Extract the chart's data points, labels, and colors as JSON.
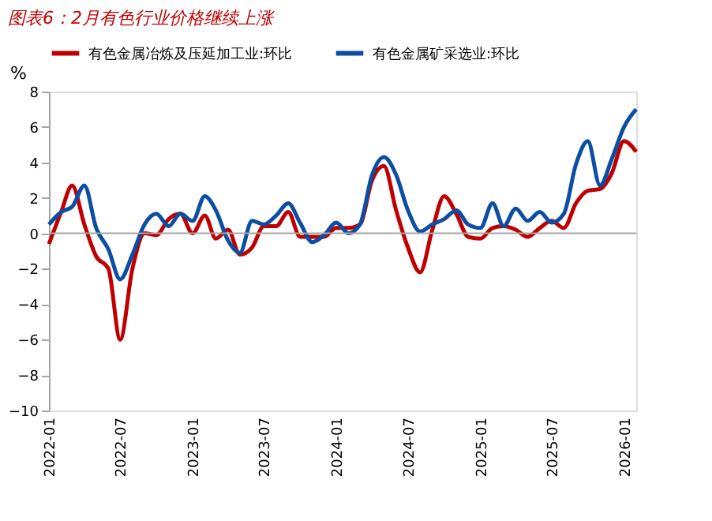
{
  "chart_data": {
    "type": "line",
    "title": "图表6：2月有色行业价格继续上涨",
    "ylabel": "%",
    "x": [
      "2022-01",
      "2022-02",
      "2022-03",
      "2022-04",
      "2022-05",
      "2022-06",
      "2022-07",
      "2022-08",
      "2022-09",
      "2022-10",
      "2022-11",
      "2022-12",
      "2023-01",
      "2023-02",
      "2023-03",
      "2023-04",
      "2023-05",
      "2023-06",
      "2023-07",
      "2023-08",
      "2023-09",
      "2023-10",
      "2023-11",
      "2023-12",
      "2024-01",
      "2024-02",
      "2024-03",
      "2024-04",
      "2024-05",
      "2024-06",
      "2024-07",
      "2024-08",
      "2024-09",
      "2024-10",
      "2024-11",
      "2024-12",
      "2025-01",
      "2025-02",
      "2025-03",
      "2025-04",
      "2025-05",
      "2025-06",
      "2025-07",
      "2025-08",
      "2025-09",
      "2025-10",
      "2025-11",
      "2025-12",
      "2026-01",
      "2026-02"
    ],
    "series": [
      {
        "name": "有色金属冶炼及压延加工业:环比",
        "color": "#c00000",
        "values": [
          -0.6,
          1.2,
          2.7,
          0.5,
          -1.3,
          -2,
          -6,
          -2,
          0,
          -0.1,
          0.8,
          1.1,
          0,
          1,
          -0.3,
          0.2,
          -1.2,
          -0.8,
          0.4,
          0.4,
          1.2,
          -0.2,
          -0.2,
          -0.2,
          0.3,
          0.3,
          0.5,
          3,
          3.8,
          1.3,
          -0.8,
          -2.2,
          0.2,
          2.1,
          1.1,
          -0.2,
          -0.3,
          0.3,
          0.4,
          0.2,
          -0.2,
          0.3,
          0.7,
          0.3,
          1.7,
          2.4,
          2.5,
          3.4,
          5.2,
          4.6
        ]
      },
      {
        "name": "有色金属矿采选业:环比",
        "color": "#0b4ea2",
        "values": [
          0.5,
          1.2,
          1.5,
          2.7,
          0.3,
          -0.9,
          -2.6,
          -1.2,
          0.5,
          1.1,
          0.4,
          1.1,
          0.7,
          2.1,
          1.3,
          -0.4,
          -1.1,
          0.7,
          0.5,
          1,
          1.7,
          0.6,
          -0.5,
          -0.1,
          0.6,
          0,
          0.5,
          3.3,
          4.3,
          3.3,
          1.3,
          0.1,
          0.5,
          0.8,
          1.3,
          0.5,
          0.3,
          1.7,
          0.4,
          1.4,
          0.7,
          1.2,
          0.6,
          1.1,
          3.9,
          5.2,
          2.7,
          4.2,
          6,
          7
        ]
      }
    ],
    "ylim": [
      -10,
      8
    ],
    "yticks": [
      -10,
      -8,
      -6,
      -4,
      -2,
      0,
      2,
      4,
      6,
      8
    ],
    "xlim": [
      "2022-01",
      "2026-02"
    ],
    "xticks": [
      "2022-01",
      "2022-07",
      "2023-01",
      "2023-07",
      "2024-01",
      "2024-07",
      "2025-01",
      "2025-07",
      "2026-01"
    ],
    "ref_lines": [
      {
        "axis": "y",
        "value": 0,
        "color": "#a6a6a6"
      }
    ],
    "grid": false,
    "legend": "top",
    "line_style": "solid",
    "marker": "none"
  }
}
